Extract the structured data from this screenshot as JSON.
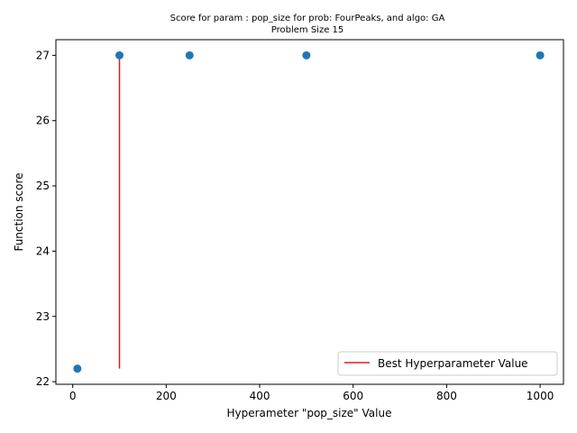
{
  "chart_data": {
    "type": "scatter",
    "title_line1": "Score for param : pop_size for prob: FourPeaks, and algo: GA",
    "title_line2": "Problem Size 15",
    "xlabel": "Hyperameter \"pop_size\" Value",
    "ylabel": "Function score",
    "xlim": [
      -36,
      1050
    ],
    "ylim": [
      21.96,
      27.24
    ],
    "x_ticks": [
      0,
      200,
      400,
      600,
      800,
      1000
    ],
    "x_tick_labels": [
      "0",
      "200",
      "400",
      "600",
      "800",
      "1000"
    ],
    "y_ticks": [
      22,
      23,
      24,
      25,
      26,
      27
    ],
    "y_tick_labels": [
      "22",
      "23",
      "24",
      "25",
      "26",
      "27"
    ],
    "series": [
      {
        "points": [
          {
            "x": 10,
            "y": 22.2
          },
          {
            "x": 100,
            "y": 27.0
          },
          {
            "x": 250,
            "y": 27.0
          },
          {
            "x": 500,
            "y": 27.0
          },
          {
            "x": 1000,
            "y": 27.0
          }
        ],
        "color": "#1f77b4"
      }
    ],
    "best_line": {
      "name": "Best Hyperparameter Value",
      "x": 100,
      "y_from": 22.2,
      "y_to": 27.0,
      "color": "#e31a1c"
    },
    "legend_position": "lower-right",
    "grid": false
  }
}
